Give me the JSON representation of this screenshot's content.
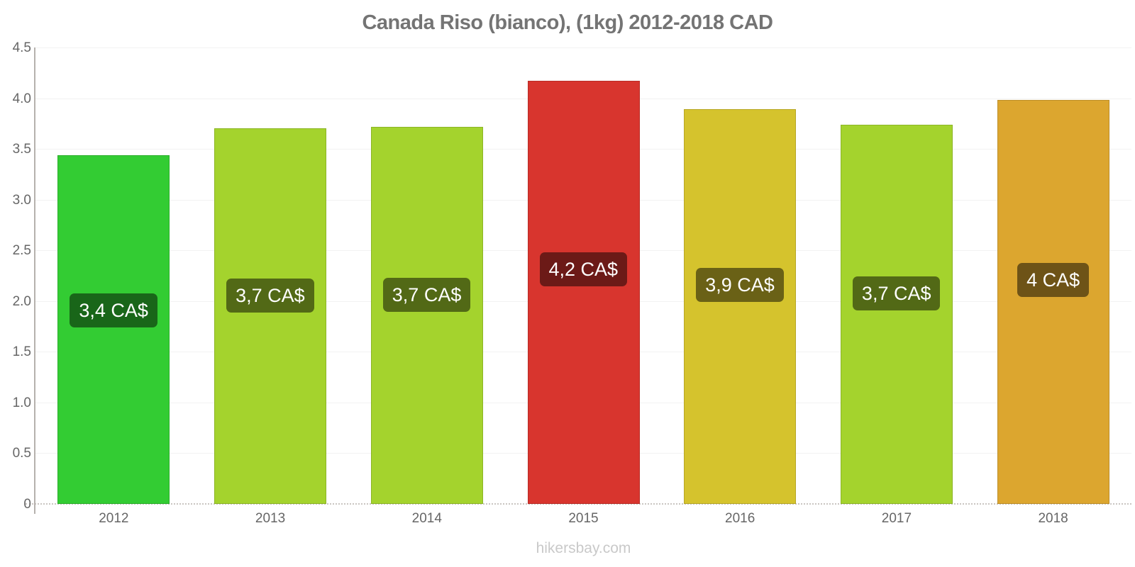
{
  "title": "Canada Riso (bianco), (1kg) 2012-2018 CAD",
  "watermark": "hikersbay.com",
  "chart_data": {
    "type": "bar",
    "title": "Canada Riso (bianco), (1kg) 2012-2018 CAD",
    "categories": [
      "2012",
      "2013",
      "2014",
      "2015",
      "2016",
      "2017",
      "2018"
    ],
    "values": [
      3.44,
      3.7,
      3.72,
      4.17,
      3.89,
      3.74,
      3.98
    ],
    "data_labels": [
      "3,4 CA$",
      "3,7 CA$",
      "3,7 CA$",
      "4,2 CA$",
      "3,9 CA$",
      "3,7 CA$",
      "4 CA$"
    ],
    "bar_colors": [
      "#33cc33",
      "#a4d32d",
      "#a4d32d",
      "#d8352e",
      "#d5c32d",
      "#a4d32d",
      "#dca62f"
    ],
    "label_bg_colors": [
      "#196619",
      "#526916",
      "#526916",
      "#6c1a17",
      "#6a6116",
      "#526916",
      "#6e5317"
    ],
    "xlabel": "",
    "ylabel": "",
    "ylim": [
      0,
      4.5
    ],
    "ytick_step": 0.5,
    "ytick_labels": [
      "0",
      "0.5",
      "1.0",
      "1.5",
      "2.0",
      "2.5",
      "3.0",
      "3.5",
      "4.0",
      "4.5"
    ],
    "grid": true,
    "legend": false,
    "currency": "CAD"
  },
  "colors": {
    "title": "#747474",
    "axis_label": "#666666",
    "axis_line": "#b6b1ad",
    "gridline": "#f2f2f2",
    "zero_line": "#c9c5c1",
    "label_text": "#ffffff",
    "watermark": "#c9c9c9",
    "background": "#ffffff"
  }
}
